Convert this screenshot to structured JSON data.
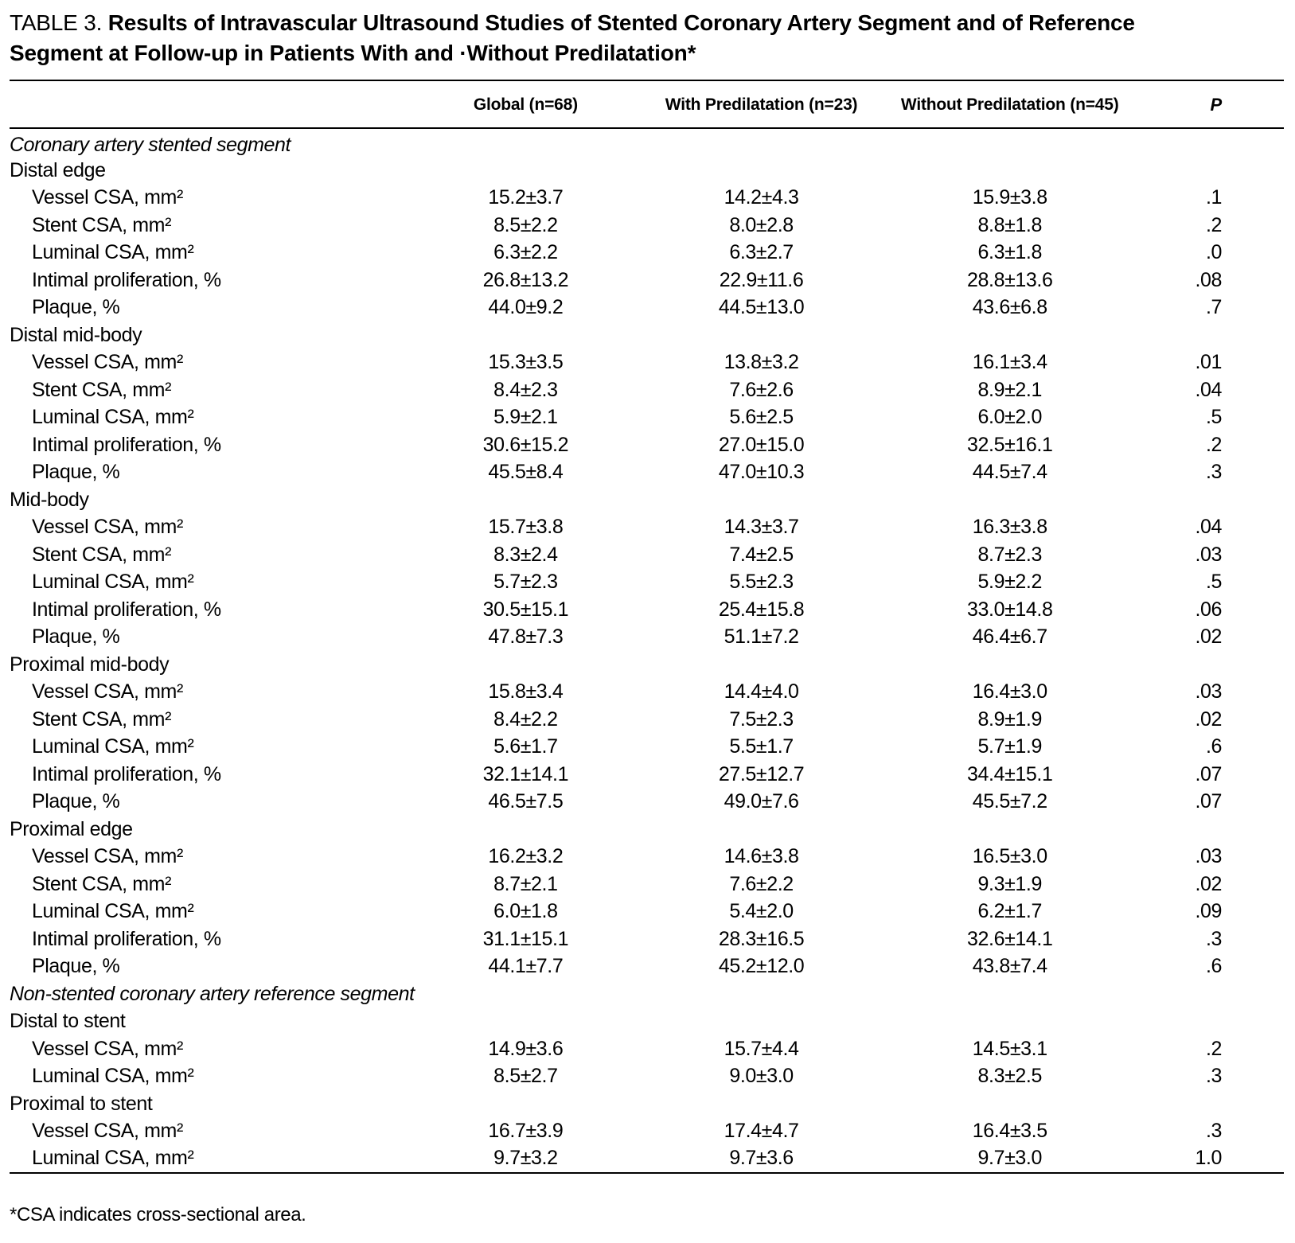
{
  "title": {
    "label": "TABLE 3.",
    "text": "Results of Intravascular Ultrasound Studies of Stented Coronary Artery Segment and of Reference Segment at Follow-up in Patients With and ·Without Predilatation*"
  },
  "columns": [
    "Global (n=68)",
    "With Predilatation (n=23)",
    "Without Predilatation (n=45)",
    "P"
  ],
  "rows": [
    {
      "type": "section",
      "label": "Coronary artery stented segment",
      "values": [
        "",
        "",
        "",
        ""
      ]
    },
    {
      "type": "group",
      "label": "Distal edge",
      "values": [
        "",
        "",
        "",
        ""
      ]
    },
    {
      "type": "data",
      "label": "Vessel CSA, mm²",
      "values": [
        "15.2±3.7",
        "14.2±4.3",
        "15.9±3.8",
        ".1"
      ]
    },
    {
      "type": "data",
      "label": "Stent CSA, mm²",
      "values": [
        "8.5±2.2",
        "8.0±2.8",
        "8.8±1.8",
        ".2"
      ]
    },
    {
      "type": "data",
      "label": "Luminal CSA, mm²",
      "values": [
        "6.3±2.2",
        "6.3±2.7",
        "6.3±1.8",
        ".0"
      ]
    },
    {
      "type": "data",
      "label": "Intimal proliferation, %",
      "values": [
        "26.8±13.2",
        "22.9±11.6",
        "28.8±13.6",
        ".08"
      ]
    },
    {
      "type": "data",
      "label": "Plaque, %",
      "values": [
        "44.0±9.2",
        "44.5±13.0",
        "43.6±6.8",
        ".7"
      ]
    },
    {
      "type": "group",
      "label": "Distal mid-body",
      "values": [
        "",
        "",
        "",
        ""
      ]
    },
    {
      "type": "data",
      "label": "Vessel CSA, mm²",
      "values": [
        "15.3±3.5",
        "13.8±3.2",
        "16.1±3.4",
        ".01"
      ]
    },
    {
      "type": "data",
      "label": "Stent CSA, mm²",
      "values": [
        "8.4±2.3",
        "7.6±2.6",
        "8.9±2.1",
        ".04"
      ]
    },
    {
      "type": "data",
      "label": "Luminal CSA, mm²",
      "values": [
        "5.9±2.1",
        "5.6±2.5",
        "6.0±2.0",
        ".5"
      ]
    },
    {
      "type": "data",
      "label": "Intimal proliferation, %",
      "values": [
        "30.6±15.2",
        "27.0±15.0",
        "32.5±16.1",
        ".2"
      ]
    },
    {
      "type": "data",
      "label": "Plaque, %",
      "values": [
        "45.5±8.4",
        "47.0±10.3",
        "44.5±7.4",
        ".3"
      ]
    },
    {
      "type": "group",
      "label": "Mid-body",
      "values": [
        "",
        "",
        "",
        ""
      ]
    },
    {
      "type": "data",
      "label": "Vessel CSA, mm²",
      "values": [
        "15.7±3.8",
        "14.3±3.7",
        "16.3±3.8",
        ".04"
      ]
    },
    {
      "type": "data",
      "label": "Stent CSA, mm²",
      "values": [
        "8.3±2.4",
        "7.4±2.5",
        "8.7±2.3",
        ".03"
      ]
    },
    {
      "type": "data",
      "label": "Luminal CSA, mm²",
      "values": [
        "5.7±2.3",
        "5.5±2.3",
        "5.9±2.2",
        ".5"
      ]
    },
    {
      "type": "data",
      "label": "Intimal proliferation, %",
      "values": [
        "30.5±15.1",
        "25.4±15.8",
        "33.0±14.8",
        ".06"
      ]
    },
    {
      "type": "data",
      "label": "Plaque, %",
      "values": [
        "47.8±7.3",
        "51.1±7.2",
        "46.4±6.7",
        ".02"
      ]
    },
    {
      "type": "group",
      "label": "Proximal mid-body",
      "values": [
        "",
        "",
        "",
        ""
      ]
    },
    {
      "type": "data",
      "label": "Vessel CSA, mm²",
      "values": [
        "15.8±3.4",
        "14.4±4.0",
        "16.4±3.0",
        ".03"
      ]
    },
    {
      "type": "data",
      "label": "Stent CSA, mm²",
      "values": [
        "8.4±2.2",
        "7.5±2.3",
        "8.9±1.9",
        ".02"
      ]
    },
    {
      "type": "data",
      "label": "Luminal CSA, mm²",
      "values": [
        "5.6±1.7",
        "5.5±1.7",
        "5.7±1.9",
        ".6"
      ]
    },
    {
      "type": "data",
      "label": "Intimal proliferation, %",
      "values": [
        "32.1±14.1",
        "27.5±12.7",
        "34.4±15.1",
        ".07"
      ]
    },
    {
      "type": "data",
      "label": "Plaque, %",
      "values": [
        "46.5±7.5",
        "49.0±7.6",
        "45.5±7.2",
        ".07"
      ]
    },
    {
      "type": "group",
      "label": "Proximal edge",
      "values": [
        "",
        "",
        "",
        ""
      ]
    },
    {
      "type": "data",
      "label": "Vessel CSA, mm²",
      "values": [
        "16.2±3.2",
        "14.6±3.8",
        "16.5±3.0",
        ".03"
      ]
    },
    {
      "type": "data",
      "label": "Stent CSA, mm²",
      "values": [
        "8.7±2.1",
        "7.6±2.2",
        "9.3±1.9",
        ".02"
      ]
    },
    {
      "type": "data",
      "label": "Luminal CSA, mm²",
      "values": [
        "6.0±1.8",
        "5.4±2.0",
        "6.2±1.7",
        ".09"
      ]
    },
    {
      "type": "data",
      "label": "Intimal proliferation, %",
      "values": [
        "31.1±15.1",
        "28.3±16.5",
        "32.6±14.1",
        ".3"
      ]
    },
    {
      "type": "data",
      "label": "Plaque, %",
      "values": [
        "44.1±7.7",
        "45.2±12.0",
        "43.8±7.4",
        ".6"
      ]
    },
    {
      "type": "section",
      "label": "Non-stented coronary artery reference segment",
      "values": [
        "",
        "",
        "",
        ""
      ]
    },
    {
      "type": "group",
      "label": "Distal to stent",
      "values": [
        "",
        "",
        "",
        ""
      ]
    },
    {
      "type": "data",
      "label": "Vessel CSA, mm²",
      "values": [
        "14.9±3.6",
        "15.7±4.4",
        "14.5±3.1",
        ".2"
      ]
    },
    {
      "type": "data",
      "label": "Luminal CSA, mm²",
      "values": [
        "8.5±2.7",
        "9.0±3.0",
        "8.3±2.5",
        ".3"
      ]
    },
    {
      "type": "group",
      "label": "Proximal to stent",
      "values": [
        "",
        "",
        "",
        ""
      ]
    },
    {
      "type": "data",
      "label": "Vessel CSA, mm²",
      "values": [
        "16.7±3.9",
        "17.4±4.7",
        "16.4±3.5",
        ".3"
      ]
    },
    {
      "type": "data",
      "label": "Luminal CSA, mm²",
      "values": [
        "9.7±3.2",
        "9.7±3.6",
        "9.7±3.0",
        "1.0"
      ]
    }
  ],
  "footnote": "*CSA indicates cross-sectional area."
}
